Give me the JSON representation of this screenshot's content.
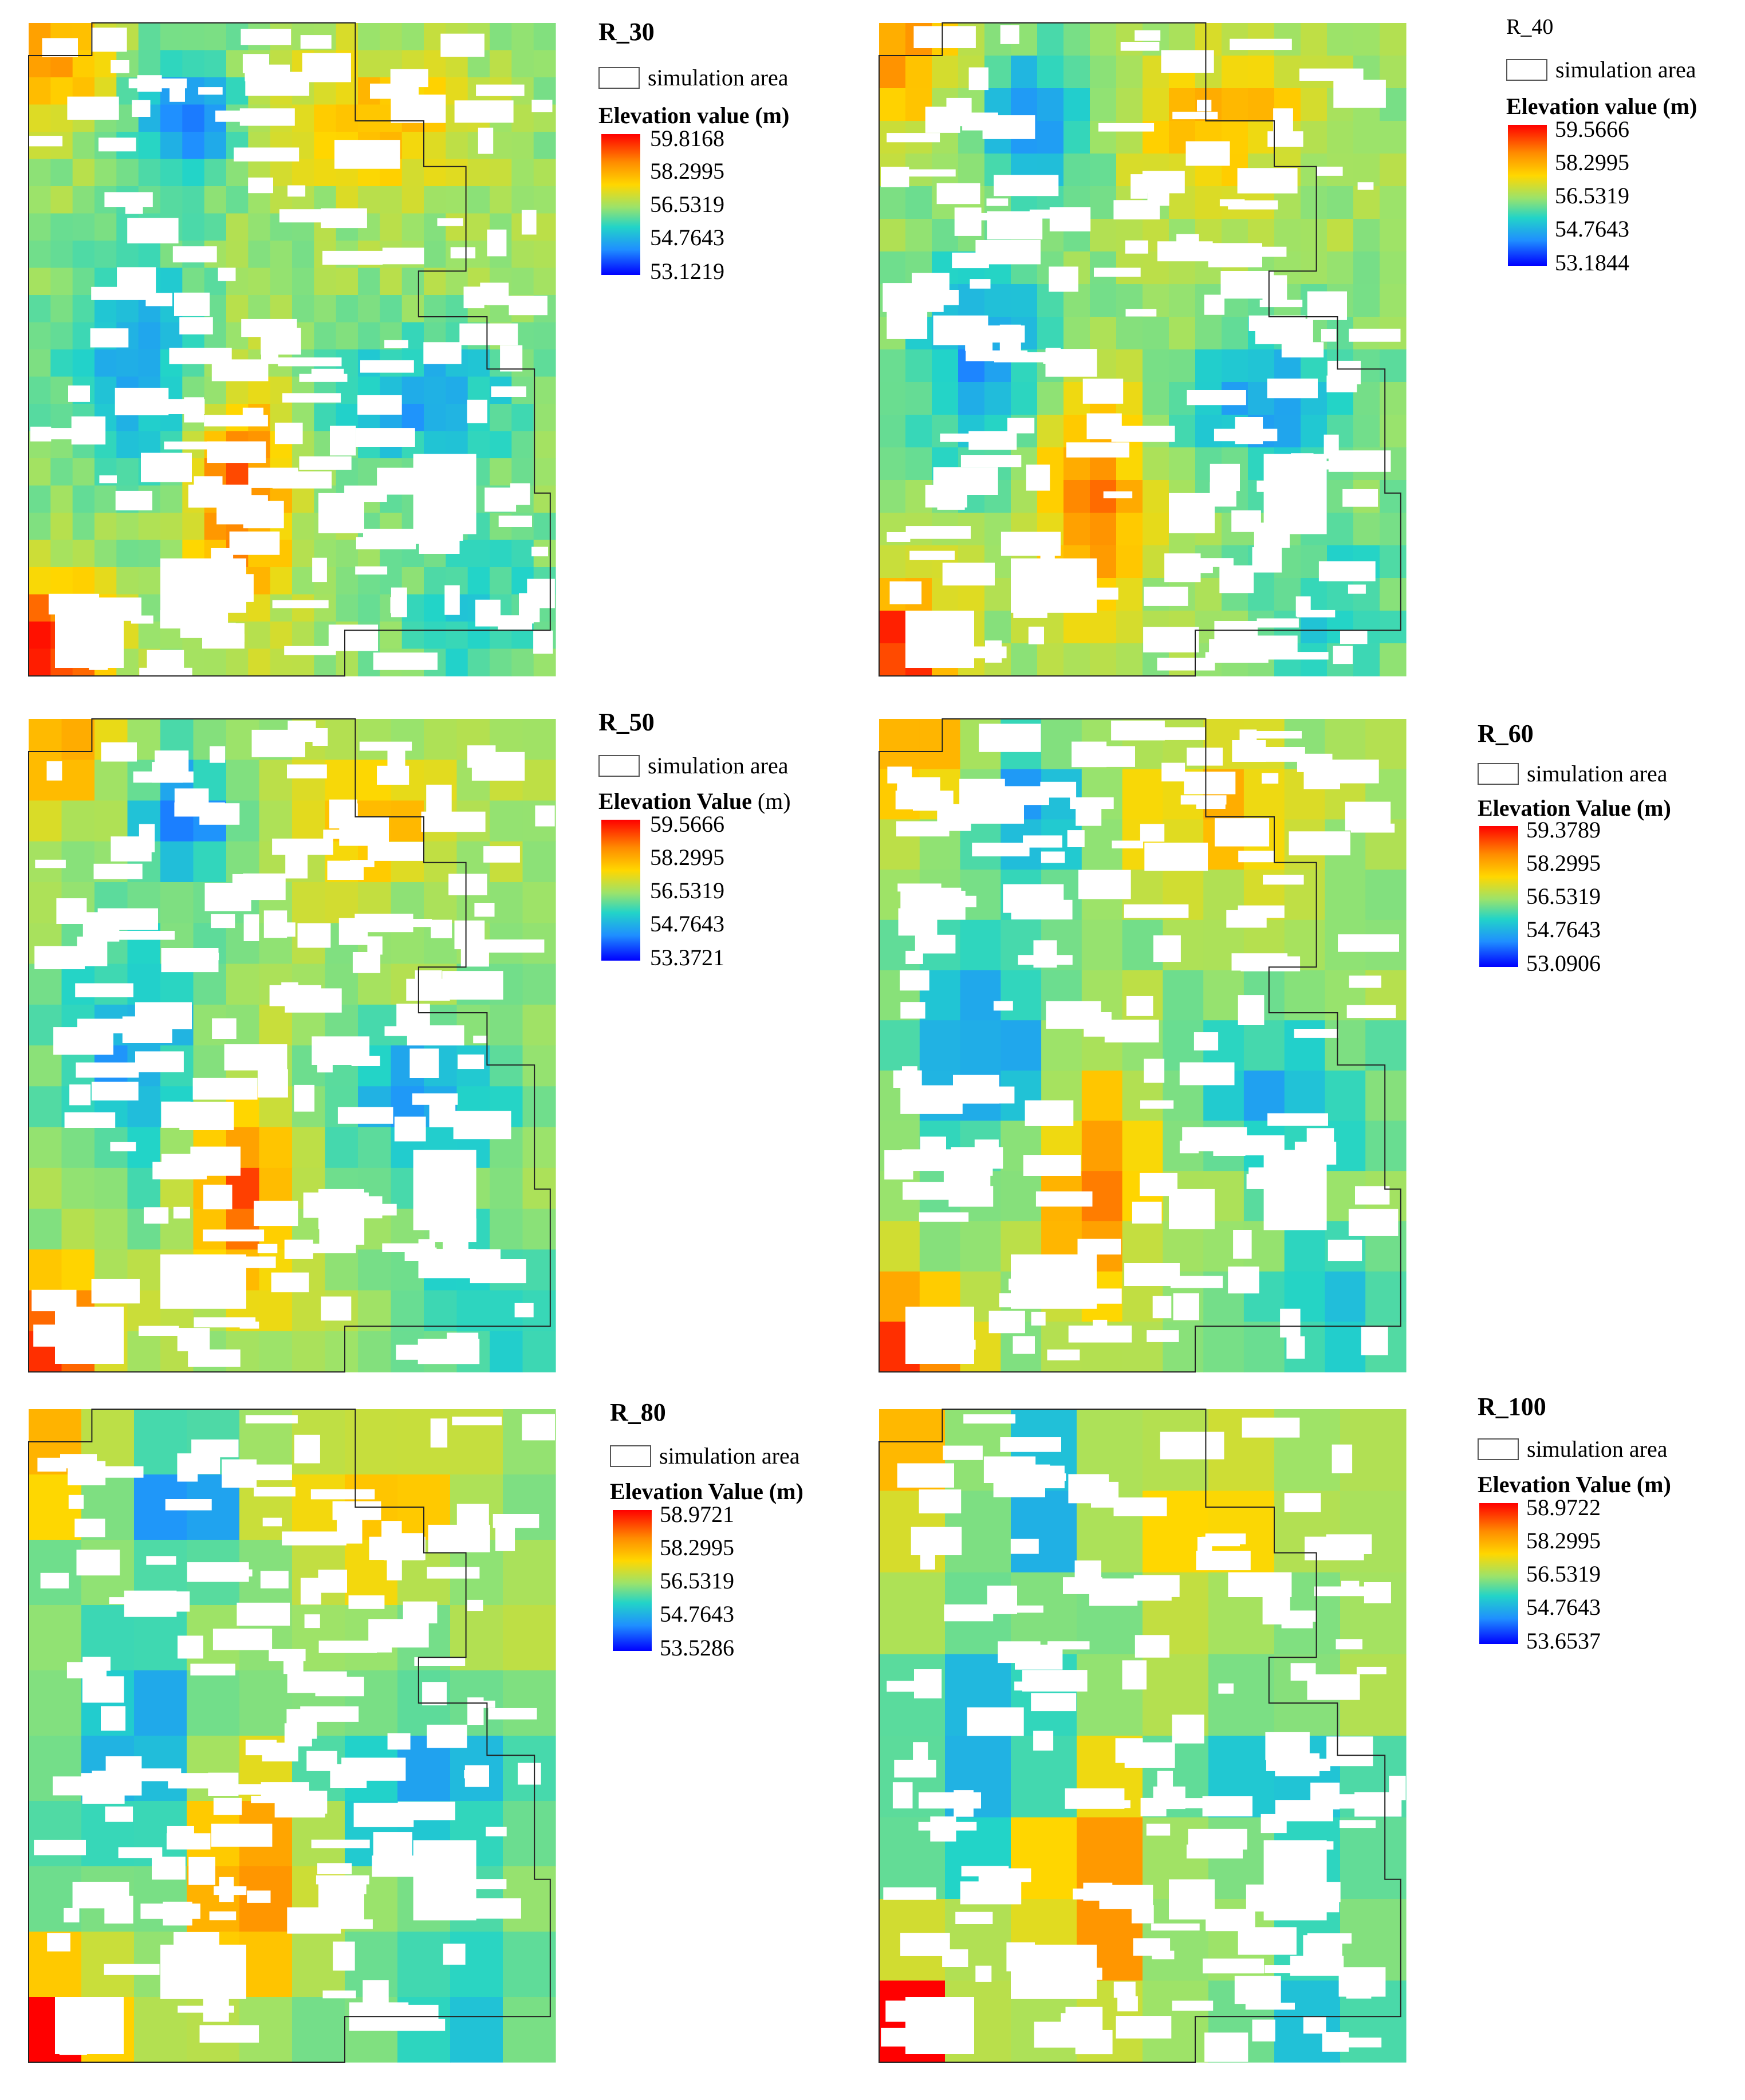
{
  "figure": {
    "legend_sim_label": "simulation area",
    "panels": [
      {
        "id": "R_30",
        "title": "R_30",
        "title_bold": true,
        "elev_title_main": "Elevation value (m)",
        "elev_title_unit": "",
        "values": [
          "59.8168",
          "58.2995",
          "56.5319",
          "54.7643",
          "53.1219"
        ],
        "grid": 24,
        "seed": 3
      },
      {
        "id": "R_40",
        "title": "R_40",
        "title_bold": false,
        "elev_title_main": "Elevation value (m)",
        "elev_title_unit": "",
        "values": [
          "59.5666",
          "58.2995",
          "56.5319",
          "54.7643",
          "53.1844"
        ],
        "grid": 20,
        "seed": 7
      },
      {
        "id": "R_50",
        "title": "R_50",
        "title_bold": true,
        "elev_title_main": "Elevation Value",
        "elev_title_unit": " (m)",
        "values": [
          "59.5666",
          "58.2995",
          "56.5319",
          "54.7643",
          "53.3721"
        ],
        "grid": 16,
        "seed": 11
      },
      {
        "id": "R_60",
        "title": "R_60",
        "title_bold": true,
        "elev_title_main": "Elevation Value (m)",
        "elev_title_unit": "",
        "values": [
          "59.3789",
          "58.2995",
          "56.5319",
          "54.7643",
          "53.0906"
        ],
        "grid": 13,
        "seed": 17
      },
      {
        "id": "R_80",
        "title": "R_80",
        "title_bold": true,
        "elev_title_main": "Elevation Value (m)",
        "elev_title_unit": "",
        "values": [
          "58.9721",
          "58.2995",
          "56.5319",
          "54.7643",
          "53.5286"
        ],
        "grid": 10,
        "seed": 23
      },
      {
        "id": "R_100",
        "title": "R_100",
        "title_bold": true,
        "elev_title_main": "Elevation Value (m)",
        "elev_title_unit": "",
        "values": [
          "58.9722",
          "58.2995",
          "56.5319",
          "54.7643",
          "53.6537"
        ],
        "grid": 8,
        "seed": 29
      }
    ]
  }
}
